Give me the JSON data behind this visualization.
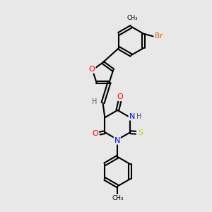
{
  "title": "",
  "background_color": "#e8e8e8",
  "bond_color": "#000000",
  "atom_colors": {
    "O": "#ff0000",
    "N": "#0000ff",
    "S": "#cccc00",
    "Br": "#cc6600",
    "H": "#555555",
    "C": "#000000"
  },
  "bond_width": 1.5,
  "figsize": [
    3.0,
    3.0
  ],
  "dpi": 100
}
